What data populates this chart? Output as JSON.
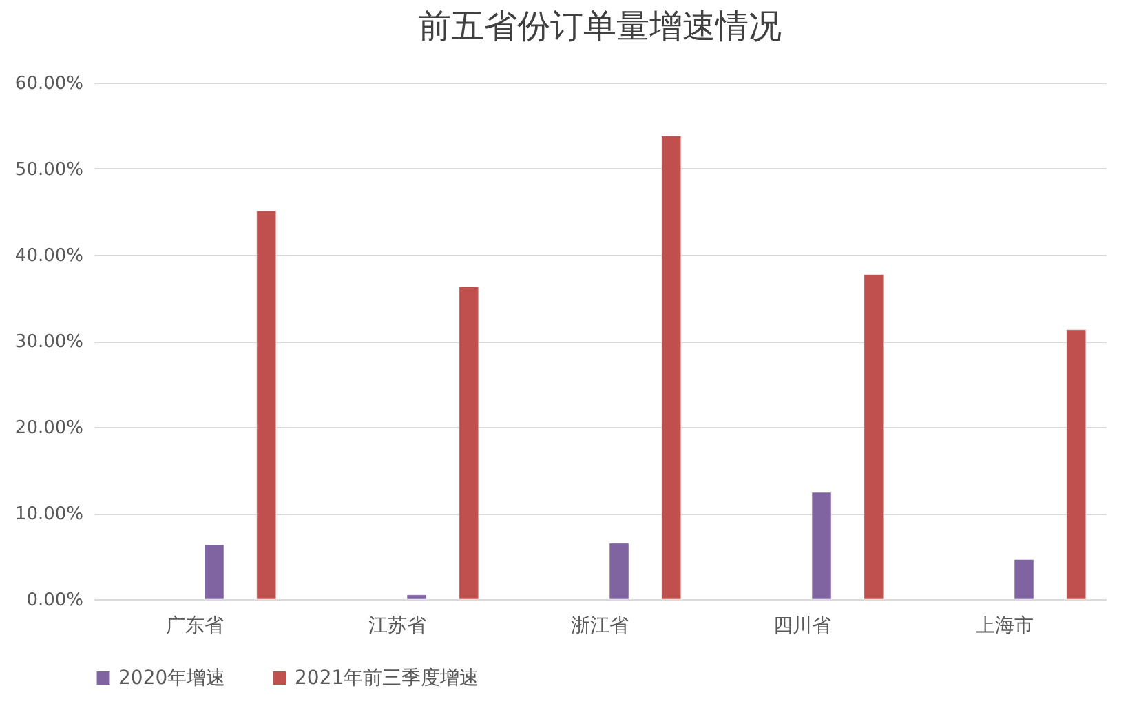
{
  "chart_data": {
    "type": "bar",
    "title": "前五省份订单量增速情况",
    "categories": [
      "广东省",
      "江苏省",
      "浙江省",
      "四川省",
      "上海市"
    ],
    "series": [
      {
        "name": "2020年增速",
        "color": "#8064a2",
        "values": [
          6.3,
          0.5,
          6.5,
          12.4,
          4.6
        ]
      },
      {
        "name": "2021年前三季度增速",
        "color": "#c0504d",
        "values": [
          45.1,
          36.3,
          53.8,
          37.7,
          31.3
        ]
      }
    ],
    "ylim": [
      0,
      60
    ],
    "yticks": [
      {
        "value": 0,
        "label": "0.00%"
      },
      {
        "value": 10,
        "label": "10.00%"
      },
      {
        "value": 20,
        "label": "20.00%"
      },
      {
        "value": 30,
        "label": "30.00%"
      },
      {
        "value": 40,
        "label": "40.00%"
      },
      {
        "value": 50,
        "label": "50.00%"
      },
      {
        "value": 60,
        "label": "60.00%"
      }
    ],
    "grid": "y",
    "legend": "bottom"
  }
}
